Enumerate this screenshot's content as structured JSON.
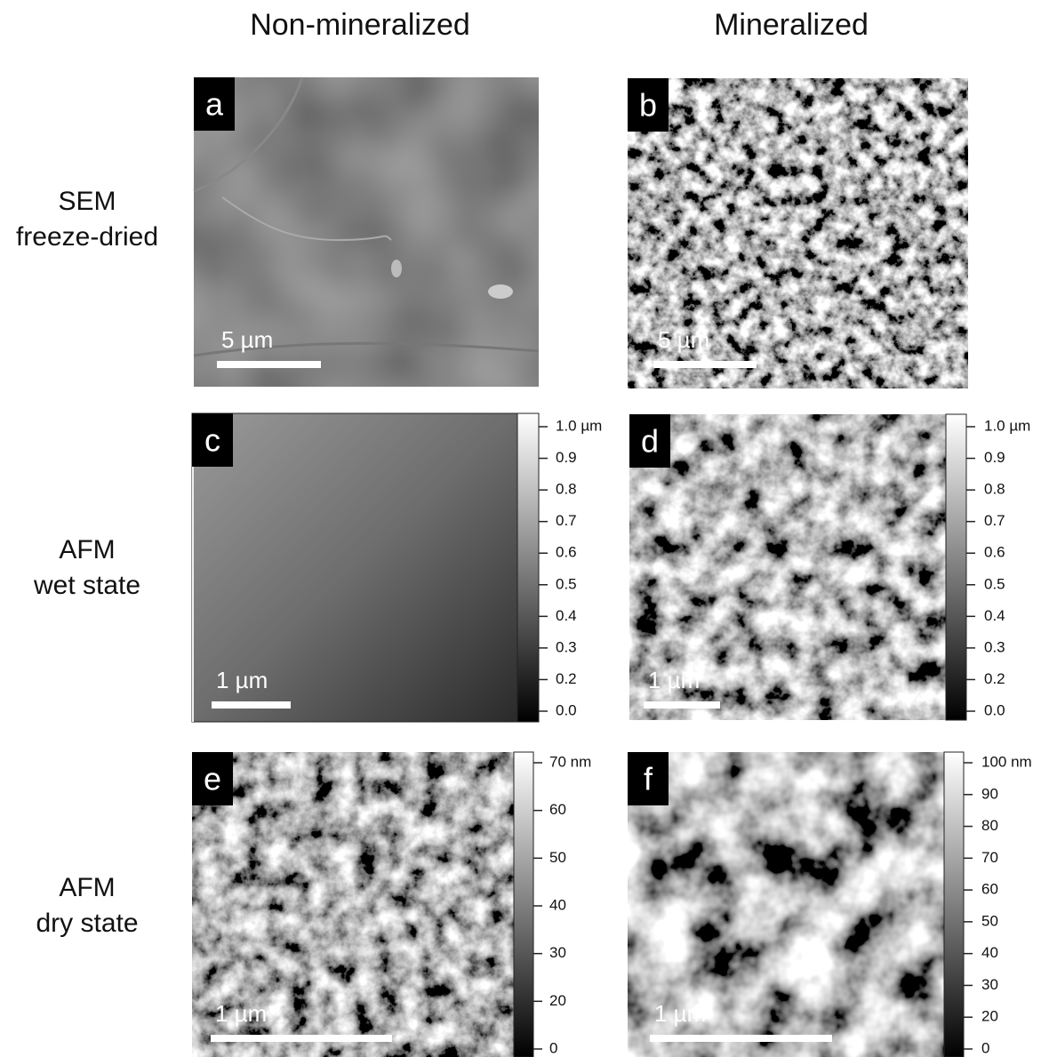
{
  "column_headers": [
    "Non-mineralized",
    "Mineralized"
  ],
  "rows": [
    {
      "lines": [
        "SEM",
        "freeze-dried"
      ]
    },
    {
      "lines": [
        "AFM",
        "wet state"
      ]
    },
    {
      "lines": [
        "AFM",
        "dry state"
      ]
    }
  ],
  "panels": [
    {
      "letter": "a",
      "scale_bar": "5 µm"
    },
    {
      "letter": "b",
      "scale_bar": "5 µm"
    },
    {
      "letter": "c",
      "scale_bar": "1 µm",
      "colorbar": [
        "1.0 µm",
        "0.9",
        "0.8",
        "0.7",
        "0.6",
        "0.5",
        "0.4",
        "0.3",
        "0.2",
        "0.0"
      ]
    },
    {
      "letter": "d",
      "scale_bar": "1 µm",
      "colorbar": [
        "1.0 µm",
        "0.9",
        "0.8",
        "0.7",
        "0.6",
        "0.5",
        "0.4",
        "0.3",
        "0.2",
        "0.0"
      ]
    },
    {
      "letter": "e",
      "scale_bar": "1 µm",
      "colorbar": [
        "70 nm",
        "60",
        "50",
        "40",
        "30",
        "20",
        "0"
      ]
    },
    {
      "letter": "f",
      "scale_bar": "1 µm",
      "colorbar": [
        "100 nm",
        "90",
        "80",
        "70",
        "60",
        "50",
        "40",
        "30",
        "20",
        "0"
      ]
    }
  ]
}
